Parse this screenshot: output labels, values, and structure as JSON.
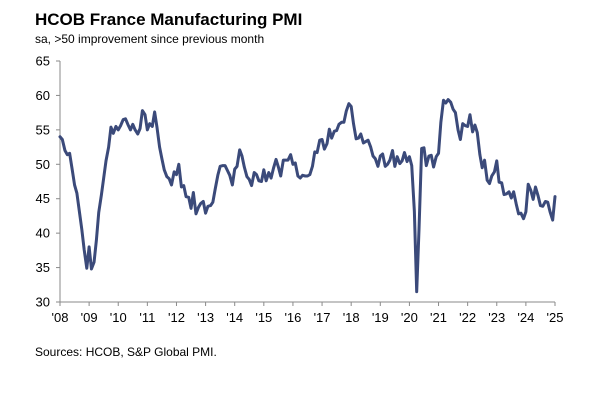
{
  "chart_data": {
    "type": "line",
    "title": "HCOB France Manufacturing PMI",
    "subtitle": "sa, >50 improvement since previous month",
    "source": "Sources: HCOB, S&P Global PMI.",
    "xlabel": "",
    "ylabel": "",
    "ylim": [
      30,
      65
    ],
    "yticks": [
      "30",
      "35",
      "40",
      "45",
      "50",
      "55",
      "60",
      "65"
    ],
    "xlim": [
      2008,
      2025
    ],
    "xticks": [
      "'08",
      "'09",
      "'10",
      "'11",
      "'12",
      "'13",
      "'14",
      "'15",
      "'16",
      "'17",
      "'18",
      "'19",
      "'20",
      "'21",
      "'22",
      "'23",
      "'24",
      "'25"
    ],
    "grid": false,
    "line_color": "#3b4a7a",
    "series": [
      {
        "x": [
          2008.0,
          2008.08,
          2008.17,
          2008.25,
          2008.33,
          2008.42,
          2008.5,
          2008.58,
          2008.67,
          2008.75,
          2008.83,
          2008.92,
          2009.0,
          2009.08,
          2009.17,
          2009.25,
          2009.33,
          2009.42,
          2009.5,
          2009.58,
          2009.67,
          2009.75,
          2009.83,
          2009.92,
          2010.0,
          2010.08,
          2010.17,
          2010.25,
          2010.33,
          2010.42,
          2010.5,
          2010.58,
          2010.67,
          2010.75,
          2010.83,
          2010.92,
          2011.0,
          2011.08,
          2011.17,
          2011.25,
          2011.33,
          2011.42,
          2011.5,
          2011.58,
          2011.67,
          2011.75,
          2011.83,
          2011.92,
          2012.0,
          2012.08,
          2012.17,
          2012.25,
          2012.33,
          2012.42,
          2012.5,
          2012.58,
          2012.67,
          2012.75,
          2012.83,
          2012.92,
          2013.0,
          2013.08,
          2013.17,
          2013.25,
          2013.33,
          2013.42,
          2013.5,
          2013.58,
          2013.67,
          2013.75,
          2013.83,
          2013.92,
          2014.0,
          2014.08,
          2014.17,
          2014.25,
          2014.33,
          2014.42,
          2014.5,
          2014.58,
          2014.67,
          2014.75,
          2014.83,
          2014.92,
          2015.0,
          2015.08,
          2015.17,
          2015.25,
          2015.33,
          2015.42,
          2015.5,
          2015.58,
          2015.67,
          2015.75,
          2015.83,
          2015.92,
          2016.0,
          2016.08,
          2016.17,
          2016.25,
          2016.33,
          2016.42,
          2016.5,
          2016.58,
          2016.67,
          2016.75,
          2016.83,
          2016.92,
          2017.0,
          2017.08,
          2017.17,
          2017.25,
          2017.33,
          2017.42,
          2017.5,
          2017.58,
          2017.67,
          2017.75,
          2017.83,
          2017.92,
          2018.0,
          2018.08,
          2018.17,
          2018.25,
          2018.33,
          2018.42,
          2018.5,
          2018.58,
          2018.67,
          2018.75,
          2018.83,
          2018.92,
          2019.0,
          2019.08,
          2019.17,
          2019.25,
          2019.33,
          2019.42,
          2019.5,
          2019.58,
          2019.67,
          2019.75,
          2019.83,
          2019.92,
          2020.0,
          2020.08,
          2020.17,
          2020.25,
          2020.33,
          2020.42,
          2020.5,
          2020.58,
          2020.67,
          2020.75,
          2020.83,
          2020.92,
          2021.0,
          2021.08,
          2021.17,
          2021.25,
          2021.33,
          2021.42,
          2021.5,
          2021.58,
          2021.67,
          2021.75,
          2021.83,
          2021.92,
          2022.0,
          2022.08,
          2022.17,
          2022.25,
          2022.33,
          2022.42,
          2022.5,
          2022.58,
          2022.67,
          2022.75,
          2022.83,
          2022.92,
          2023.0,
          2023.08,
          2023.17,
          2023.25,
          2023.33,
          2023.42,
          2023.5,
          2023.58,
          2023.67,
          2023.75,
          2023.83,
          2023.92,
          2024.0,
          2024.08,
          2024.17,
          2024.25,
          2024.33,
          2024.42,
          2024.5,
          2024.58,
          2024.67,
          2024.75,
          2024.83,
          2024.92,
          2025.0
        ],
        "values": [
          54.0,
          53.6,
          52.0,
          51.4,
          51.6,
          49.2,
          47.0,
          45.8,
          43.0,
          40.5,
          37.6,
          34.9,
          38.0,
          34.8,
          35.8,
          39.0,
          43.0,
          45.5,
          48.0,
          50.5,
          52.5,
          55.4,
          54.5,
          55.5,
          55.0,
          55.6,
          56.5,
          56.6,
          55.8,
          55.0,
          55.8,
          55.0,
          54.4,
          55.2,
          57.8,
          57.2,
          55.0,
          55.9,
          55.5,
          57.6,
          55.4,
          52.5,
          50.8,
          49.2,
          48.2,
          47.9,
          47.0,
          48.9,
          48.5,
          50.0,
          46.7,
          46.9,
          45.3,
          45.2,
          43.6,
          45.9,
          42.8,
          43.7,
          44.3,
          44.6,
          42.9,
          43.9,
          44.0,
          44.5,
          46.4,
          48.4,
          49.7,
          49.8,
          49.8,
          49.1,
          48.4,
          47.0,
          49.3,
          49.7,
          52.1,
          51.2,
          49.6,
          48.2,
          47.8,
          46.9,
          48.8,
          48.5,
          47.6,
          47.5,
          49.2,
          47.6,
          48.8,
          48.0,
          49.4,
          50.7,
          49.6,
          48.3,
          50.6,
          50.6,
          50.6,
          51.4,
          50.0,
          50.2,
          48.3,
          48.0,
          48.4,
          48.3,
          48.3,
          48.5,
          49.7,
          51.8,
          51.7,
          53.5,
          53.6,
          52.2,
          53.0,
          55.1,
          53.8,
          54.8,
          54.9,
          55.8,
          56.1,
          56.1,
          57.7,
          58.8,
          58.4,
          55.9,
          53.7,
          53.8,
          54.4,
          53.1,
          53.3,
          53.5,
          52.5,
          51.2,
          50.8,
          49.7,
          51.2,
          51.5,
          49.7,
          50.0,
          50.6,
          52.0,
          49.7,
          51.1,
          50.1,
          50.5,
          51.7,
          50.4,
          51.1,
          49.8,
          43.2,
          31.5,
          40.6,
          52.3,
          52.4,
          49.8,
          51.2,
          51.3,
          49.6,
          51.1,
          51.6,
          56.1,
          59.3,
          58.9,
          59.4,
          59.0,
          58.0,
          57.5,
          55.0,
          53.6,
          55.9,
          55.6,
          55.5,
          57.2,
          54.7,
          55.7,
          54.6,
          51.4,
          49.5,
          50.6,
          47.7,
          47.2,
          48.3,
          48.9,
          50.5,
          47.4,
          47.3,
          45.6,
          45.7,
          46.0,
          45.1,
          46.0,
          44.2,
          42.8,
          42.9,
          42.1,
          43.1,
          47.1,
          46.2,
          44.9,
          46.7,
          45.4,
          44.0,
          43.9,
          44.6,
          44.5,
          43.1,
          41.9,
          45.3
        ]
      }
    ]
  }
}
